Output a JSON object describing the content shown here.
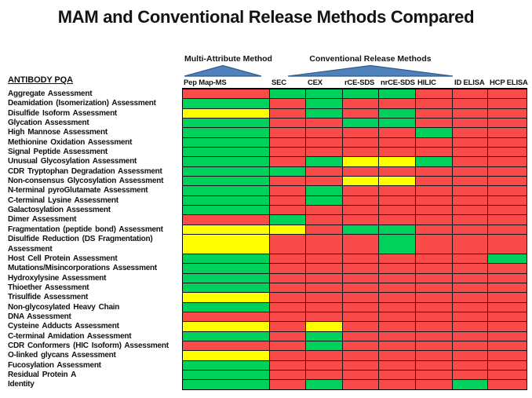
{
  "title": "MAM and Conventional Release Methods Compared",
  "row_header": "ANTIBODY PQA",
  "groups": {
    "mam_label": "Multi-Attribute Method",
    "conventional_label": "Conventional Release Methods"
  },
  "triangle_color": "#4F81BD",
  "triangle_border_color": "#2F5B8E",
  "chart_data": {
    "type": "heatmap",
    "title": "MAM and Conventional Release Methods Compared",
    "row_header": "ANTIBODY PQA",
    "column_groups": [
      {
        "label": "Multi-Attribute Method",
        "columns": [
          "Pep Map-MS"
        ]
      },
      {
        "label": "Conventional Release Methods",
        "columns": [
          "SEC",
          "CEX",
          "rCE-SDS",
          "nrCE-SDS",
          "HILIC",
          "ID ELISA",
          "HCP ELISA"
        ]
      }
    ],
    "columns": [
      "Pep Map-MS",
      "SEC",
      "CEX",
      "rCE-SDS",
      "nrCE-SDS",
      "HILIC",
      "ID ELISA",
      "HCP ELISA"
    ],
    "color_legend": {
      "green": "#00D15C",
      "red": "#FA4B4B",
      "yellow": "#FFFF00"
    },
    "rows": [
      {
        "label": "Aggregate Assessment",
        "values": [
          "red",
          "green",
          "green",
          "green",
          "green",
          "red",
          "red",
          "red"
        ]
      },
      {
        "label": "Deamidation (Isomerization) Assessment",
        "values": [
          "green",
          "red",
          "green",
          "red",
          "red",
          "red",
          "red",
          "red"
        ]
      },
      {
        "label": "Disulfide Isoform Assessment",
        "values": [
          "yellow",
          "red",
          "green",
          "red",
          "green",
          "red",
          "red",
          "red"
        ]
      },
      {
        "label": "Glycation Assessment",
        "values": [
          "green",
          "red",
          "red",
          "green",
          "green",
          "red",
          "red",
          "red"
        ]
      },
      {
        "label": "High Mannose Assessment",
        "values": [
          "green",
          "red",
          "red",
          "red",
          "red",
          "green",
          "red",
          "red"
        ]
      },
      {
        "label": "Methionine Oxidation Assessment",
        "values": [
          "green",
          "red",
          "red",
          "red",
          "red",
          "red",
          "red",
          "red"
        ]
      },
      {
        "label": "Signal Peptide Assessment",
        "values": [
          "green",
          "red",
          "red",
          "red",
          "red",
          "red",
          "red",
          "red"
        ]
      },
      {
        "label": "Unusual Glycosylation Assessment",
        "values": [
          "green",
          "red",
          "green",
          "yellow",
          "yellow",
          "green",
          "red",
          "red"
        ]
      },
      {
        "label": "CDR Tryptophan Degradation Assessment",
        "values": [
          "green",
          "green",
          "red",
          "red",
          "red",
          "red",
          "red",
          "red"
        ]
      },
      {
        "label": "Non-consensus Glycosylation Assessment",
        "values": [
          "green",
          "red",
          "red",
          "yellow",
          "yellow",
          "red",
          "red",
          "red"
        ]
      },
      {
        "label": "N-terminal pyroGlutamate Assessment",
        "values": [
          "green",
          "red",
          "green",
          "red",
          "red",
          "red",
          "red",
          "red"
        ]
      },
      {
        "label": "C-terminal Lysine Assessment",
        "values": [
          "green",
          "red",
          "green",
          "red",
          "red",
          "red",
          "red",
          "red"
        ]
      },
      {
        "label": "Galactosylation Assessment",
        "values": [
          "green",
          "red",
          "red",
          "red",
          "red",
          "red",
          "red",
          "red"
        ]
      },
      {
        "label": "Dimer Assessment",
        "values": [
          "red",
          "green",
          "red",
          "red",
          "red",
          "red",
          "red",
          "red"
        ]
      },
      {
        "label": "Fragmentation (peptide bond) Assessment",
        "values": [
          "yellow",
          "yellow",
          "red",
          "green",
          "green",
          "red",
          "red",
          "red"
        ]
      },
      {
        "label": "Disulfide Reduction (DS Fragmentation) Assessment",
        "tall": true,
        "values": [
          "yellow",
          "red",
          "red",
          "red",
          "green",
          "red",
          "red",
          "red"
        ]
      },
      {
        "label": "Host Cell Protein Assessment",
        "values": [
          "green",
          "red",
          "red",
          "red",
          "red",
          "red",
          "red",
          "green"
        ]
      },
      {
        "label": "Mutations/Misincorporations Assessment",
        "values": [
          "green",
          "red",
          "red",
          "red",
          "red",
          "red",
          "red",
          "red"
        ]
      },
      {
        "label": "Hydroxylysine Assessment",
        "values": [
          "green",
          "red",
          "red",
          "red",
          "red",
          "red",
          "red",
          "red"
        ]
      },
      {
        "label": "Thioether Assessment",
        "values": [
          "green",
          "red",
          "red",
          "red",
          "red",
          "red",
          "red",
          "red"
        ]
      },
      {
        "label": "Trisulfide Assessment",
        "values": [
          "yellow",
          "red",
          "red",
          "red",
          "red",
          "red",
          "red",
          "red"
        ]
      },
      {
        "label": "Non-glycosylated Heavy Chain",
        "values": [
          "green",
          "red",
          "red",
          "red",
          "red",
          "red",
          "red",
          "red"
        ]
      },
      {
        "label": "DNA Assessment",
        "values": [
          "red",
          "red",
          "red",
          "red",
          "red",
          "red",
          "red",
          "red"
        ]
      },
      {
        "label": "Cysteine Adducts Assessment",
        "values": [
          "yellow",
          "red",
          "yellow",
          "red",
          "red",
          "red",
          "red",
          "red"
        ]
      },
      {
        "label": "C-terminal Amidation Assessment",
        "values": [
          "green",
          "red",
          "green",
          "red",
          "red",
          "red",
          "red",
          "red"
        ]
      },
      {
        "label": "CDR Conformers (HIC Isoform) Assessment",
        "values": [
          "red",
          "red",
          "green",
          "red",
          "red",
          "red",
          "red",
          "red"
        ]
      },
      {
        "label": "O-linked glycans Assessment",
        "values": [
          "yellow",
          "red",
          "red",
          "red",
          "red",
          "red",
          "red",
          "red"
        ]
      },
      {
        "label": "Fucosylation Assessment",
        "values": [
          "green",
          "red",
          "red",
          "red",
          "red",
          "red",
          "red",
          "red"
        ]
      },
      {
        "label": "Residual Protein A",
        "values": [
          "green",
          "red",
          "red",
          "red",
          "red",
          "red",
          "red",
          "red"
        ]
      },
      {
        "label": "Identity",
        "values": [
          "green",
          "red",
          "green",
          "red",
          "red",
          "red",
          "green",
          "red"
        ]
      }
    ]
  }
}
